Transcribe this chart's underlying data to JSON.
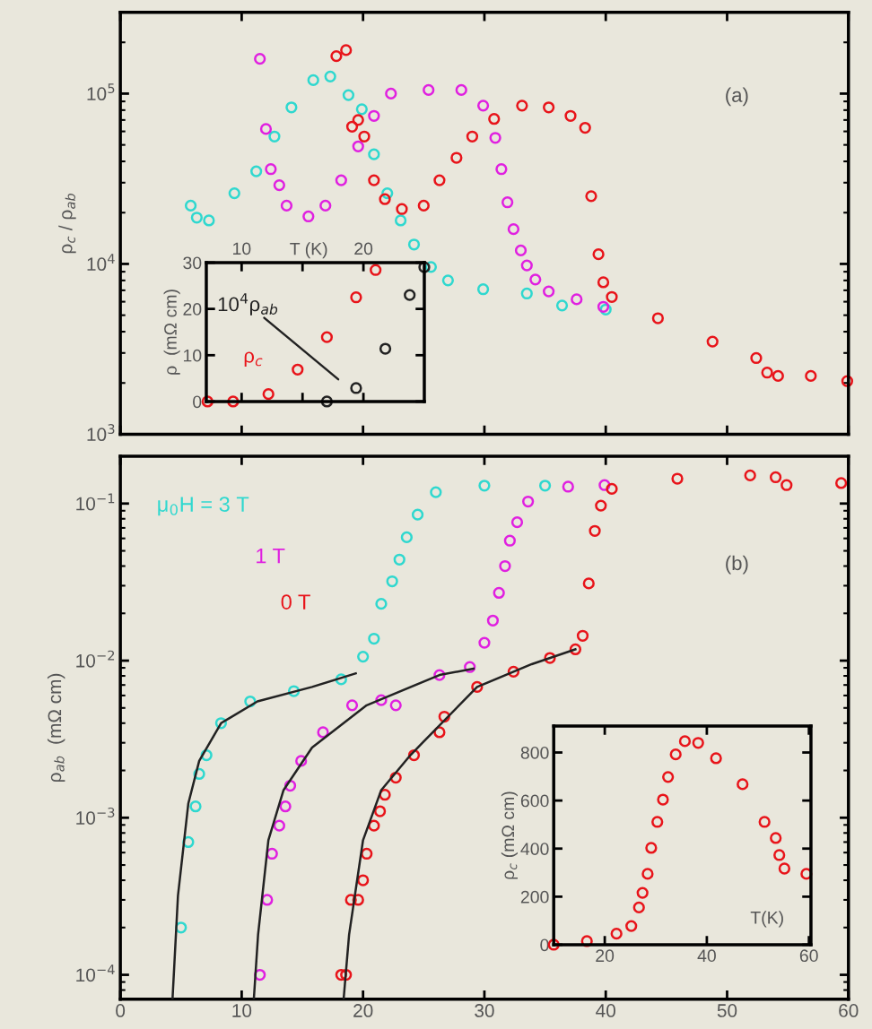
{
  "chart_data": [
    {
      "type": "scatter",
      "ylabel": "ρ$_{c}$ / ρ$_{ab}$",
      "annotations": [
        "(a)"
      ],
      "log": "y",
      "marker": "circle",
      "tick_labels": "y",
      "xlim": [
        0,
        60
      ],
      "ylim": [
        1000,
        300000
      ],
      "xticks": [
        0,
        10,
        20,
        30,
        40,
        50,
        60
      ],
      "yticks": [
        {
          "value": 1000,
          "label": "10$^{3}$"
        },
        {
          "value": 10000,
          "label": "10$^{4}$"
        },
        {
          "value": 100000,
          "label": "10$^{5}$"
        }
      ],
      "series": [
        {
          "color": "#2fd8cf",
          "x": [
            5.8,
            6.3,
            7.3,
            9.4,
            11.2,
            12.7,
            14.1,
            15.9,
            17.3,
            18.8,
            19.9,
            20.9,
            22.0,
            23.1,
            24.2,
            25.6,
            27.0,
            29.9,
            33.5,
            36.4,
            40.0
          ],
          "values": [
            22000,
            18700,
            18000,
            26000,
            35000,
            56000,
            83000,
            120000,
            126000,
            98000,
            81000,
            44000,
            26000,
            18000,
            13000,
            9600,
            8000,
            7100,
            6700,
            5700,
            5400
          ]
        },
        {
          "color": "#e020e0",
          "x": [
            11.5,
            12.0,
            12.4,
            13.1,
            13.7,
            15.5,
            16.9,
            18.2,
            19.6,
            20.9,
            22.3,
            25.4,
            28.1,
            29.9,
            30.9,
            31.4,
            31.9,
            32.4,
            33.0,
            33.5,
            34.2,
            35.3,
            37.6,
            39.8
          ],
          "values": [
            160000,
            62000,
            36000,
            29000,
            22000,
            19000,
            22000,
            31000,
            49000,
            74000,
            100000,
            105000,
            105000,
            85000,
            55000,
            36000,
            23000,
            16000,
            12000,
            9800,
            8100,
            6900,
            6200,
            5600
          ]
        },
        {
          "color": "#e8141a",
          "x": [
            17.8,
            18.6,
            19.1,
            19.6,
            20.1,
            20.9,
            21.8,
            23.2,
            25.0,
            26.3,
            27.7,
            29.0,
            30.8,
            33.1,
            35.3,
            37.1,
            38.3,
            38.8,
            39.4,
            39.8,
            40.5,
            44.3,
            48.8,
            52.4,
            53.3,
            54.2,
            56.9,
            59.9
          ],
          "values": [
            166000,
            180000,
            64000,
            70000,
            56000,
            31000,
            24000,
            21000,
            22000,
            31000,
            42000,
            56000,
            71000,
            85000,
            83000,
            74000,
            63000,
            25000,
            11400,
            7800,
            6400,
            4800,
            3500,
            2800,
            2300,
            2200,
            2200,
            2050
          ]
        }
      ]
    },
    {
      "type": "scatter",
      "xlabel": "T (K)",
      "ylabel": "ρ  (mΩ cm)",
      "marker": "circle",
      "xlim": [
        7.1,
        25
      ],
      "ylim": [
        0,
        30
      ],
      "xticks": [
        10,
        {
          "value": 15,
          "label": null
        },
        20
      ],
      "yticks": [
        0,
        10,
        20,
        30
      ],
      "series": [
        {
          "name": "ρ$_{c}$",
          "color": "#e8141a",
          "x": [
            7.2,
            9.3,
            12.2,
            14.6,
            17.0,
            19.4,
            21.0
          ],
          "values": [
            0,
            0,
            1.6,
            6.9,
            13.9,
            22.5,
            28.4
          ]
        },
        {
          "name": "10$^{4}$ρ$_{ab}$",
          "color": "#222222",
          "x": [
            17.0,
            19.4,
            21.8,
            23.8,
            25.0
          ],
          "values": [
            0,
            2.9,
            11.4,
            23,
            29
          ]
        }
      ]
    },
    {
      "type": "scatter",
      "ylabel": "ρ$_{ab}$  (mΩ cm)",
      "annotations": [
        "(b)"
      ],
      "log": "y",
      "marker": "circle",
      "xlim": [
        0,
        60
      ],
      "ylim": [
        7e-05,
        0.2
      ],
      "xticks": [
        0,
        10,
        20,
        30,
        40,
        50,
        60
      ],
      "yticks": [
        {
          "value": 0.0001,
          "label": "10$^{−4}$"
        },
        {
          "value": 0.001,
          "label": "10$^{−3}$"
        },
        {
          "value": 0.01,
          "label": "10$^{−2}$"
        },
        {
          "value": 0.1,
          "label": "10$^{−1}$"
        }
      ],
      "series": [
        {
          "name": "μ$_{0}$H = 3 T",
          "color": "#2fd8cf",
          "x": [
            5.0,
            5.6,
            6.2,
            6.5,
            7.1,
            8.3,
            10.7,
            14.3,
            18.2,
            20.0,
            20.9,
            21.5,
            22.4,
            23.0,
            23.6,
            24.5,
            26.0,
            30.0,
            35.0
          ],
          "values": [
            0.0002,
            0.0007,
            0.00118,
            0.0019,
            0.0025,
            0.004,
            0.0055,
            0.0064,
            0.0076,
            0.0106,
            0.0138,
            0.023,
            0.032,
            0.044,
            0.061,
            0.085,
            0.118,
            0.13,
            0.13
          ]
        },
        {
          "name": "1 T",
          "color": "#e020e0",
          "x": [
            11.5,
            12.1,
            12.5,
            13.1,
            13.6,
            14.0,
            14.9,
            16.7,
            19.1,
            21.5,
            22.7,
            26.3,
            28.8,
            30.0,
            30.7,
            31.2,
            31.7,
            32.1,
            32.7,
            33.6,
            36.9,
            39.9
          ],
          "values": [
            0.0001,
            0.0003,
            0.00059,
            0.00089,
            0.00118,
            0.0016,
            0.0023,
            0.0035,
            0.0052,
            0.0056,
            0.0052,
            0.0081,
            0.0091,
            0.013,
            0.018,
            0.027,
            0.04,
            0.058,
            0.076,
            0.103,
            0.128,
            0.131
          ]
        },
        {
          "name": "0 T",
          "color": "#e8141a",
          "x": [
            18.2,
            18.6,
            19.0,
            19.6,
            20.0,
            20.3,
            20.9,
            21.4,
            21.8,
            22.7,
            24.2,
            26.3,
            26.7,
            29.4,
            32.4,
            35.4,
            37.5,
            38.1,
            38.6,
            39.1,
            39.6,
            40.5,
            45.9,
            51.9,
            54.0,
            54.9,
            59.4
          ],
          "values": [
            0.0001,
            0.0001,
            0.0003,
            0.0003,
            0.0004,
            0.00059,
            0.00089,
            0.0011,
            0.0014,
            0.0018,
            0.0025,
            0.0035,
            0.0044,
            0.0068,
            0.0085,
            0.0104,
            0.0118,
            0.0144,
            0.031,
            0.067,
            0.097,
            0.124,
            0.144,
            0.151,
            0.147,
            0.131,
            0.135
          ]
        },
        {
          "type": "line",
          "marker": "none",
          "color": "#222222",
          "x": [
            4.3,
            4.75,
            5.6,
            6.5,
            8.3,
            11.3,
            15.8,
            19.4
          ],
          "values": [
            7e-05,
            0.00032,
            0.00123,
            0.0023,
            0.004,
            0.0055,
            0.0068,
            0.0083
          ]
        },
        {
          "type": "line",
          "marker": "none",
          "color": "#222222",
          "x": [
            11.0,
            11.35,
            12.2,
            13.45,
            15.8,
            20.3,
            26.3,
            29.1
          ],
          "values": [
            7e-05,
            0.00018,
            0.00072,
            0.0015,
            0.0028,
            0.0052,
            0.0081,
            0.0089
          ]
        },
        {
          "type": "line",
          "marker": "none",
          "color": "#222222",
          "x": [
            18.4,
            18.85,
            20.0,
            21.5,
            23.9,
            24.9,
            29.4,
            33.9,
            37.5
          ],
          "values": [
            7e-05,
            0.00018,
            0.00072,
            0.0015,
            0.0025,
            0.003,
            0.0068,
            0.0095,
            0.0118
          ]
        }
      ]
    },
    {
      "type": "scatter",
      "xlabel": "T(K)",
      "ylabel": "ρ$_{c}$ (mΩ cm)",
      "marker": "circle",
      "xlim": [
        10,
        60.4
      ],
      "ylim": [
        0,
        910
      ],
      "xticks": [
        20,
        40,
        60
      ],
      "yticks": [
        0,
        200,
        400,
        600,
        800
      ],
      "series": [
        {
          "color": "#e8141a",
          "x": [
            10,
            16.5,
            22.3,
            25.2,
            26.7,
            27.4,
            28.4,
            29.1,
            30.3,
            31.4,
            32.4,
            33.9,
            35.7,
            38.3,
            41.8,
            47.0,
            51.3,
            53.5,
            54.2,
            55.2,
            59.5
          ],
          "values": [
            0,
            15,
            46,
            78,
            155,
            216,
            295,
            403,
            511,
            604,
            698,
            792,
            847,
            840,
            776,
            668,
            511,
            444,
            373,
            317,
            295
          ]
        }
      ]
    }
  ]
}
